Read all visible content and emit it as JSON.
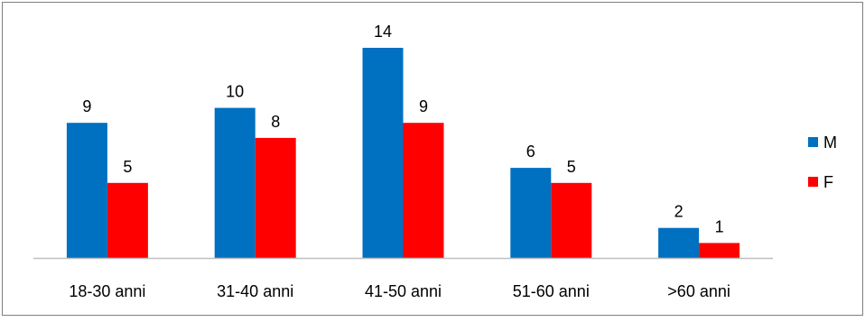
{
  "chart_data": {
    "type": "bar",
    "categories": [
      "18-30 anni",
      "31-40 anni",
      "41-50 anni",
      "51-60 anni",
      ">60 anni"
    ],
    "series": [
      {
        "name": "M",
        "values": [
          9,
          10,
          14,
          6,
          2
        ],
        "color": "#0070C0"
      },
      {
        "name": "F",
        "values": [
          5,
          8,
          9,
          5,
          1
        ],
        "color": "#FF0000"
      }
    ],
    "title": "",
    "xlabel": "",
    "ylabel": "",
    "ylim": [
      0,
      14
    ],
    "grid": false,
    "data_labels": true,
    "legend_position": "right"
  }
}
